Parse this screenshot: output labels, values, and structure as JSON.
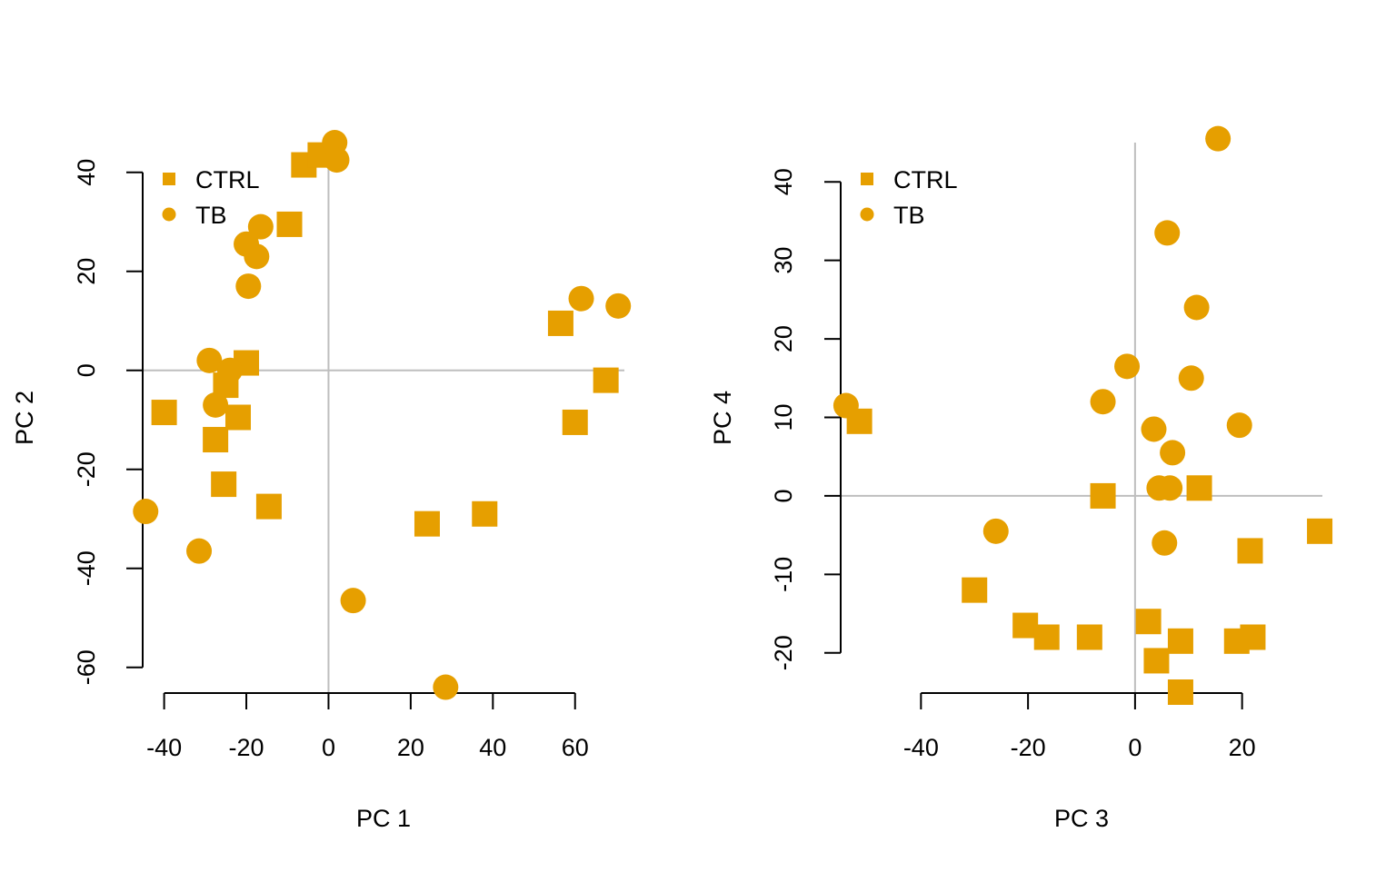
{
  "colors": {
    "points": "#E69F00",
    "refline": "#BEBEBE",
    "axis": "#000000"
  },
  "chart_data": [
    {
      "type": "scatter",
      "xlabel": "PC 1",
      "ylabel": "PC 2",
      "xticks": [
        -40,
        -20,
        0,
        20,
        40,
        60
      ],
      "yticks": [
        40,
        20,
        0,
        -20,
        -40,
        -60
      ],
      "xlim": [
        -45,
        72
      ],
      "ylim": [
        -65,
        46
      ],
      "reference_lines": {
        "x": 0,
        "y": 0
      },
      "legend": {
        "position": "top-left",
        "entries": [
          {
            "label": "CTRL",
            "marker": "square"
          },
          {
            "label": "TB",
            "marker": "circle"
          }
        ]
      },
      "series": [
        {
          "name": "CTRL",
          "marker": "square",
          "points": [
            [
              -40,
              -8.5
            ],
            [
              -27.5,
              -14
            ],
            [
              -25.5,
              -23
            ],
            [
              -25,
              -3
            ],
            [
              -22,
              -9.5
            ],
            [
              -20,
              1.5
            ],
            [
              -14.5,
              -27.5
            ],
            [
              -9.5,
              29.5
            ],
            [
              -6,
              41.5
            ],
            [
              -2,
              43.5
            ],
            [
              24,
              -31
            ],
            [
              38,
              -29
            ],
            [
              56.5,
              9.5
            ],
            [
              60,
              -10.5
            ],
            [
              67.5,
              -2
            ]
          ]
        },
        {
          "name": "TB",
          "marker": "circle",
          "points": [
            [
              -44.5,
              -28.5
            ],
            [
              -31.5,
              -36.5
            ],
            [
              -29,
              2
            ],
            [
              -27.5,
              -7
            ],
            [
              -24,
              0
            ],
            [
              -20,
              25.5
            ],
            [
              -19.5,
              17
            ],
            [
              -17.5,
              23
            ],
            [
              -16.5,
              29
            ],
            [
              1.5,
              46
            ],
            [
              2,
              42.5
            ],
            [
              6,
              -46.5
            ],
            [
              28.5,
              -64
            ],
            [
              61.5,
              14.5
            ],
            [
              70.5,
              13
            ]
          ]
        }
      ]
    },
    {
      "type": "scatter",
      "xlabel": "PC 3",
      "ylabel": "PC 4",
      "xticks": [
        -40,
        -20,
        0,
        20
      ],
      "yticks": [
        40,
        30,
        20,
        10,
        0,
        -10,
        -20
      ],
      "xlim": [
        -55,
        35
      ],
      "ylim": [
        -25,
        45
      ],
      "reference_lines": {
        "x": 0,
        "y": 0
      },
      "legend": {
        "position": "top-left",
        "entries": [
          {
            "label": "CTRL",
            "marker": "square"
          },
          {
            "label": "TB",
            "marker": "circle"
          }
        ]
      },
      "series": [
        {
          "name": "CTRL",
          "marker": "square",
          "points": [
            [
              -51.5,
              9.5
            ],
            [
              -30,
              -12
            ],
            [
              -20.5,
              -16.5
            ],
            [
              -16.5,
              -18
            ],
            [
              -8.5,
              -18
            ],
            [
              -6,
              0
            ],
            [
              2.5,
              -16
            ],
            [
              4,
              -21
            ],
            [
              8.5,
              -18.5
            ],
            [
              8.5,
              -25
            ],
            [
              12,
              1
            ],
            [
              19,
              -18.5
            ],
            [
              21.5,
              -7
            ],
            [
              22,
              -18
            ],
            [
              34.5,
              -4.5
            ]
          ]
        },
        {
          "name": "TB",
          "marker": "circle",
          "points": [
            [
              -54,
              11.5
            ],
            [
              -26,
              -4.5
            ],
            [
              -6,
              12
            ],
            [
              -1.5,
              16.5
            ],
            [
              3.5,
              8.5
            ],
            [
              4.5,
              1
            ],
            [
              5.5,
              -6
            ],
            [
              6,
              33.5
            ],
            [
              6.5,
              1
            ],
            [
              7,
              5.5
            ],
            [
              10.5,
              15
            ],
            [
              11.5,
              24
            ],
            [
              15.5,
              45.5
            ],
            [
              19.5,
              9
            ]
          ]
        }
      ]
    }
  ]
}
